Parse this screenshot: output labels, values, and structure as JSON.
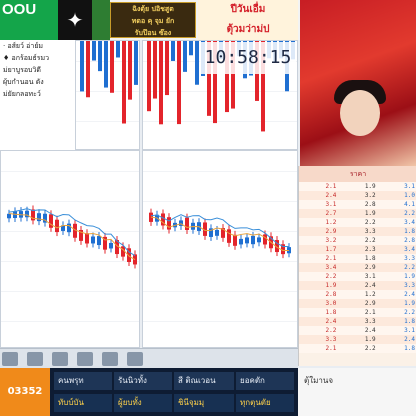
{
  "topbar": {
    "logo_text": "OOU",
    "logo_sub": "·",
    "star_glyph": "✦",
    "ad_lines": [
      "ฉิงตุ้ย ปอิชสูต",
      "ทดอ คุ จุม ยัก",
      "รับป๊อน  ซ๊อง"
    ],
    "ad2_line1": "ปีวันเอื่ม",
    "ad2_line2": "ตุ้วมว่าม่ป"
  },
  "clock": {
    "time": "10:58:15"
  },
  "left_panel": {
    "rows": [
      "· อส์ยว์ อ่าย์ม",
      "♦ อกร้อมธ์รมว",
      "ม่ยาบูรอบวิดี",
      "ผุ้บกำนอน ดัง",
      "ม่ยัยกลอทะว์"
    ]
  },
  "orderbook": {
    "header": "ราคา",
    "rows": [
      [
        "2.1",
        "1.9",
        "3.1"
      ],
      [
        "2.4",
        "3.2",
        "1.0"
      ],
      [
        "3.1",
        "2.8",
        "4.1"
      ],
      [
        "2.7",
        "1.9",
        "2.2"
      ],
      [
        "1.2",
        "2.2",
        "3.4"
      ],
      [
        "2.9",
        "3.3",
        "1.8"
      ],
      [
        "3.2",
        "2.2",
        "2.8"
      ],
      [
        "1.7",
        "2.3",
        "3.4"
      ],
      [
        "2.1",
        "1.8",
        "3.3"
      ],
      [
        "3.4",
        "2.9",
        "2.2"
      ],
      [
        "2.2",
        "3.1",
        "1.9"
      ],
      [
        "1.9",
        "2.4",
        "3.3"
      ],
      [
        "2.8",
        "1.2",
        "2.4"
      ],
      [
        "3.0",
        "2.9",
        "1.9"
      ],
      [
        "1.8",
        "2.1",
        "2.2"
      ],
      [
        "2.4",
        "3.3",
        "1.8"
      ],
      [
        "2.2",
        "2.4",
        "3.1"
      ],
      [
        "3.3",
        "1.9",
        "2.4"
      ],
      [
        "2.1",
        "2.2",
        "1.8"
      ]
    ]
  },
  "statusbar": {
    "orange_label": "03352",
    "cells_top": [
      "คนพรุท",
      "รันนิวทั้ง",
      "สี ติณเวอน",
      "ยอคตัก"
    ],
    "cells_bottom": [
      "ทับบ์บัน",
      "ผู้ยบทั้ง",
      "ชินีจุมมุ",
      "ทุกตุนตัย"
    ],
    "right_label": "ตุ้ใมานจ"
  },
  "colors": {
    "up": "#e3242b",
    "down": "#1f6fd1",
    "ma1": "#e8a23c",
    "ma2": "#3a8fd9"
  }
}
